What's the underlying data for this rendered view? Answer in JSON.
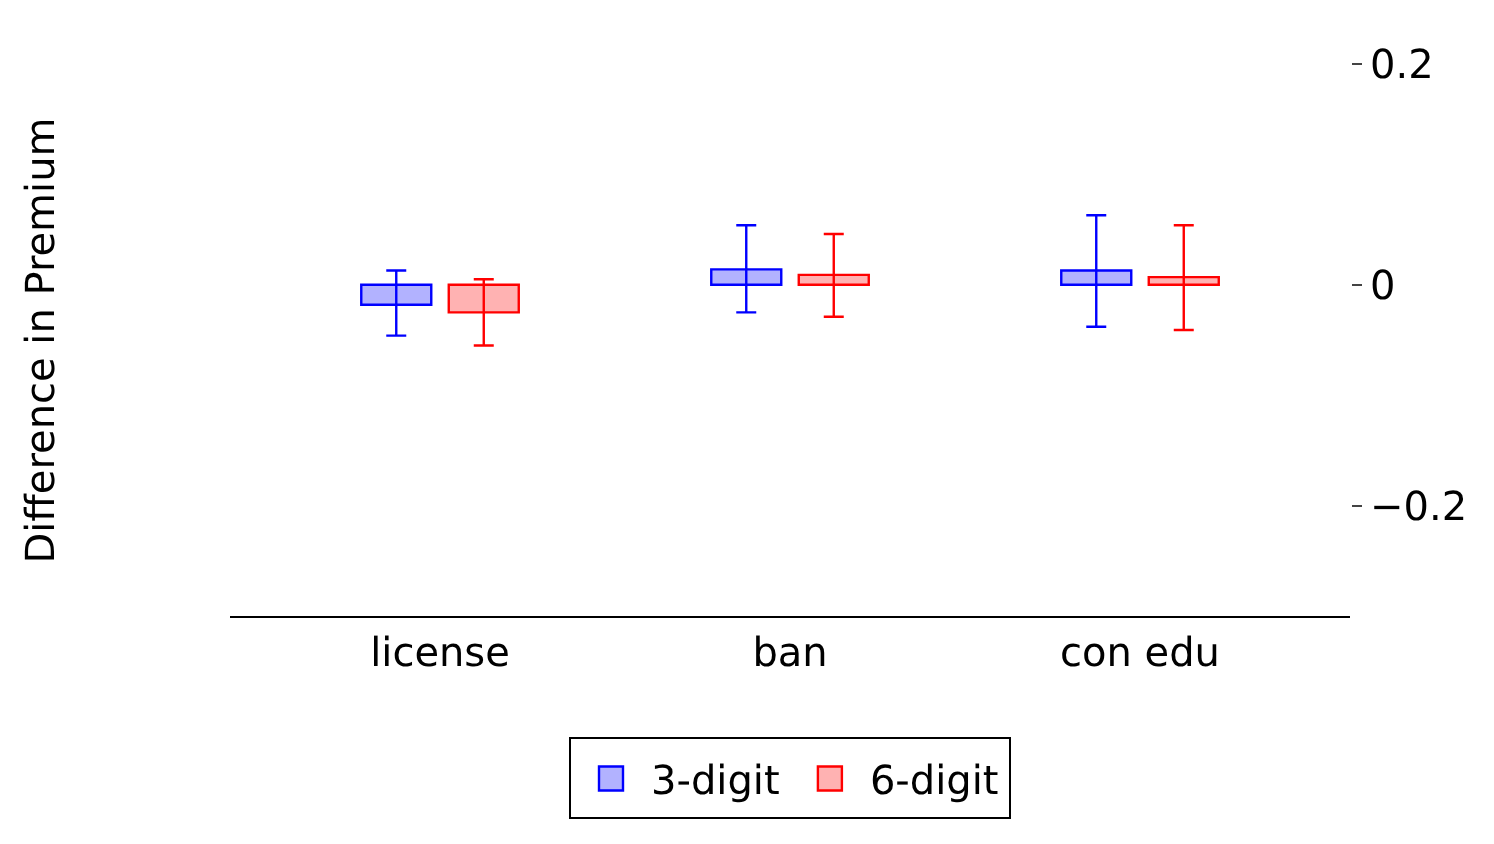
{
  "chart_data": {
    "type": "bar",
    "ylabel": "Difference in Premium",
    "categories": [
      "license",
      "ban",
      "con edu"
    ],
    "series": [
      {
        "name": "3-digit",
        "color": "#0000ff",
        "values": [
          -0.018,
          0.014,
          0.013
        ],
        "errors": [
          [
            -0.046,
            0.013
          ],
          [
            -0.025,
            0.054
          ],
          [
            -0.038,
            0.063
          ]
        ]
      },
      {
        "name": "6-digit",
        "color": "#ff0000",
        "values": [
          -0.025,
          0.009,
          0.007
        ],
        "errors": [
          [
            -0.055,
            0.005
          ],
          [
            -0.029,
            0.046
          ],
          [
            -0.041,
            0.054
          ]
        ]
      }
    ],
    "ylim": [
      -0.3,
      0.2
    ],
    "yticks": [
      0.2,
      0,
      {
        "value": -0.2,
        "label": "−0.2"
      }
    ],
    "grid": false,
    "legend": "bottom"
  }
}
